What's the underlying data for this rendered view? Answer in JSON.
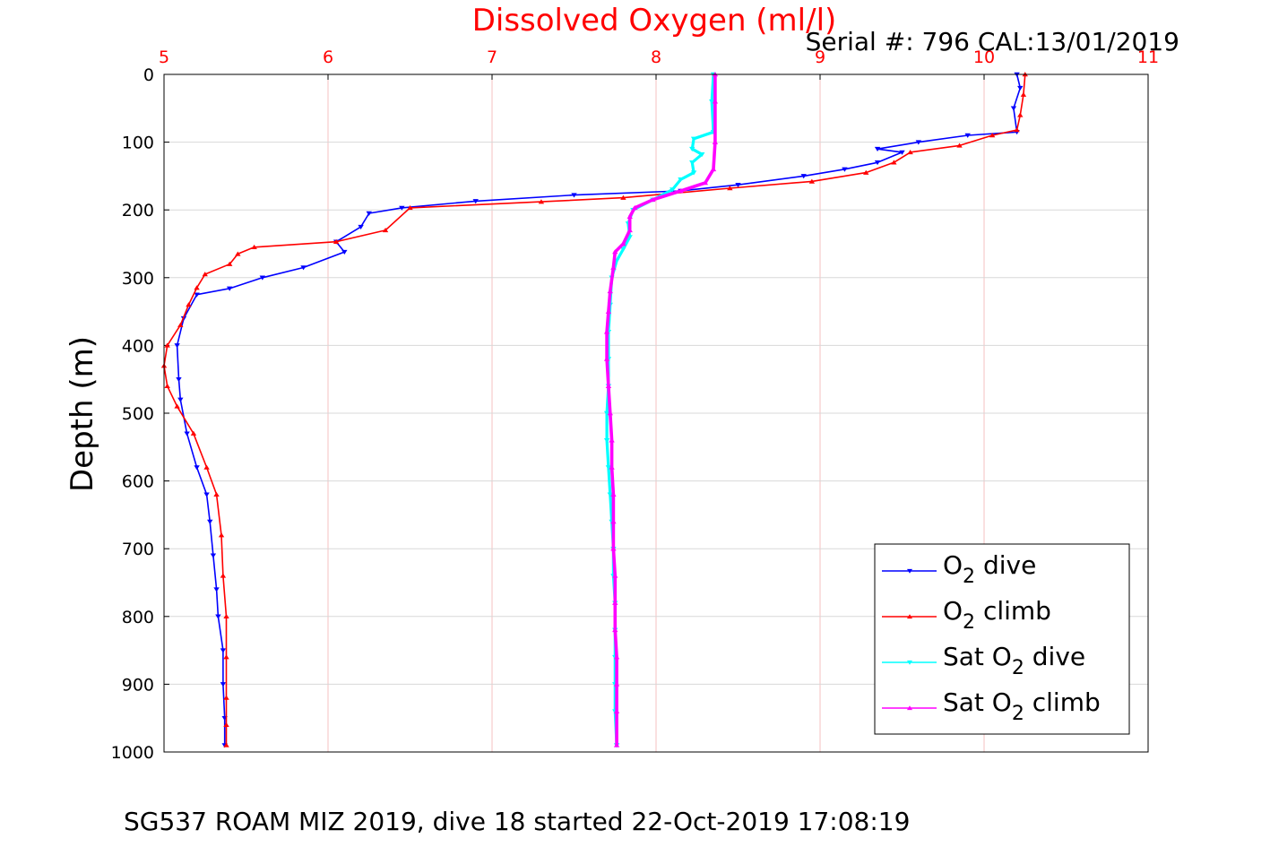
{
  "chart_data": {
    "type": "line",
    "title": "Dissolved Oxygen (ml/l)",
    "serial_text": "Serial #: 796  CAL:13/01/2019",
    "footer": "SG537 ROAM MIZ 2019, dive 18 started 22-Oct-2019 17:08:19",
    "ylabel": "Depth (m)",
    "xlim": [
      5,
      11
    ],
    "ylim": [
      0,
      1000
    ],
    "y_reversed": true,
    "x_axis_position": "top",
    "x_ticks": [
      "5",
      "6",
      "7",
      "8",
      "9",
      "10",
      "11"
    ],
    "y_ticks": [
      "0",
      "100",
      "200",
      "300",
      "400",
      "500",
      "600",
      "700",
      "800",
      "900",
      "1000"
    ],
    "grid": true,
    "legend_position": "bottom-right",
    "colors": {
      "title": "#ff0000",
      "x_ticks": "#ff0000",
      "grid": "#f4c0c0",
      "axis": "#000000"
    },
    "series": [
      {
        "name": "O2 dive",
        "legend_main": "O",
        "legend_sub": "2",
        "legend_rest": " dive",
        "color": "#0000ff",
        "marker": "triangle-down",
        "points": [
          [
            10.2,
            0
          ],
          [
            10.22,
            20
          ],
          [
            10.18,
            50
          ],
          [
            10.2,
            85
          ],
          [
            9.9,
            90
          ],
          [
            9.6,
            100
          ],
          [
            9.35,
            110
          ],
          [
            9.5,
            115
          ],
          [
            9.35,
            130
          ],
          [
            9.15,
            140
          ],
          [
            8.9,
            150
          ],
          [
            8.5,
            163
          ],
          [
            8.15,
            172
          ],
          [
            7.5,
            178
          ],
          [
            6.9,
            187
          ],
          [
            6.45,
            197
          ],
          [
            6.25,
            205
          ],
          [
            6.2,
            225
          ],
          [
            6.05,
            247
          ],
          [
            6.1,
            262
          ],
          [
            5.85,
            285
          ],
          [
            5.6,
            300
          ],
          [
            5.4,
            316
          ],
          [
            5.2,
            325
          ],
          [
            5.12,
            360
          ],
          [
            5.08,
            400
          ],
          [
            5.09,
            450
          ],
          [
            5.1,
            480
          ],
          [
            5.14,
            530
          ],
          [
            5.2,
            580
          ],
          [
            5.26,
            620
          ],
          [
            5.28,
            660
          ],
          [
            5.3,
            710
          ],
          [
            5.32,
            760
          ],
          [
            5.33,
            800
          ],
          [
            5.36,
            850
          ],
          [
            5.36,
            900
          ],
          [
            5.37,
            950
          ],
          [
            5.37,
            990
          ]
        ]
      },
      {
        "name": "O2 climb",
        "legend_main": "O",
        "legend_sub": "2",
        "legend_rest": " climb",
        "color": "#ff0000",
        "marker": "triangle-up",
        "points": [
          [
            10.25,
            0
          ],
          [
            10.24,
            30
          ],
          [
            10.22,
            60
          ],
          [
            10.2,
            82
          ],
          [
            10.05,
            90
          ],
          [
            9.85,
            105
          ],
          [
            9.55,
            115
          ],
          [
            9.45,
            130
          ],
          [
            9.28,
            145
          ],
          [
            8.95,
            158
          ],
          [
            8.45,
            168
          ],
          [
            7.8,
            182
          ],
          [
            7.3,
            188
          ],
          [
            6.5,
            197
          ],
          [
            6.35,
            230
          ],
          [
            6.05,
            247
          ],
          [
            5.55,
            255
          ],
          [
            5.45,
            265
          ],
          [
            5.4,
            280
          ],
          [
            5.25,
            295
          ],
          [
            5.2,
            315
          ],
          [
            5.15,
            340
          ],
          [
            5.1,
            370
          ],
          [
            5.02,
            400
          ],
          [
            5.0,
            430
          ],
          [
            5.02,
            460
          ],
          [
            5.08,
            490
          ],
          [
            5.18,
            530
          ],
          [
            5.26,
            580
          ],
          [
            5.32,
            620
          ],
          [
            5.35,
            680
          ],
          [
            5.36,
            740
          ],
          [
            5.38,
            800
          ],
          [
            5.38,
            860
          ],
          [
            5.38,
            920
          ],
          [
            5.38,
            960
          ],
          [
            5.38,
            990
          ]
        ]
      },
      {
        "name": "Sat O2 dive",
        "legend_main": "Sat O",
        "legend_sub": "2",
        "legend_rest": " dive",
        "color": "#00ffff",
        "marker": "triangle-down",
        "points": [
          [
            8.35,
            0
          ],
          [
            8.34,
            40
          ],
          [
            8.35,
            85
          ],
          [
            8.23,
            95
          ],
          [
            8.22,
            110
          ],
          [
            8.28,
            118
          ],
          [
            8.22,
            130
          ],
          [
            8.23,
            145
          ],
          [
            8.15,
            155
          ],
          [
            8.1,
            170
          ],
          [
            7.98,
            185
          ],
          [
            7.86,
            200
          ],
          [
            7.83,
            220
          ],
          [
            7.84,
            240
          ],
          [
            7.8,
            258
          ],
          [
            7.76,
            275
          ],
          [
            7.73,
            300
          ],
          [
            7.72,
            340
          ],
          [
            7.71,
            380
          ],
          [
            7.71,
            420
          ],
          [
            7.71,
            460
          ],
          [
            7.7,
            500
          ],
          [
            7.7,
            540
          ],
          [
            7.71,
            580
          ],
          [
            7.72,
            620
          ],
          [
            7.73,
            660
          ],
          [
            7.74,
            700
          ],
          [
            7.74,
            740
          ],
          [
            7.75,
            780
          ],
          [
            7.75,
            820
          ],
          [
            7.75,
            860
          ],
          [
            7.75,
            900
          ],
          [
            7.75,
            940
          ],
          [
            7.76,
            990
          ]
        ]
      },
      {
        "name": "Sat O2 climb",
        "legend_main": "Sat O",
        "legend_sub": "2",
        "legend_rest": " climb",
        "color": "#ff00ff",
        "marker": "triangle-up",
        "points": [
          [
            8.36,
            0
          ],
          [
            8.36,
            40
          ],
          [
            8.36,
            100
          ],
          [
            8.35,
            140
          ],
          [
            8.3,
            160
          ],
          [
            8.15,
            172
          ],
          [
            7.98,
            185
          ],
          [
            7.87,
            197
          ],
          [
            7.84,
            210
          ],
          [
            7.84,
            230
          ],
          [
            7.8,
            250
          ],
          [
            7.75,
            262
          ],
          [
            7.74,
            285
          ],
          [
            7.72,
            320
          ],
          [
            7.71,
            350
          ],
          [
            7.7,
            380
          ],
          [
            7.7,
            420
          ],
          [
            7.71,
            460
          ],
          [
            7.72,
            500
          ],
          [
            7.73,
            540
          ],
          [
            7.73,
            580
          ],
          [
            7.74,
            620
          ],
          [
            7.74,
            660
          ],
          [
            7.74,
            700
          ],
          [
            7.75,
            740
          ],
          [
            7.75,
            780
          ],
          [
            7.75,
            820
          ],
          [
            7.76,
            860
          ],
          [
            7.76,
            900
          ],
          [
            7.76,
            940
          ],
          [
            7.76,
            990
          ]
        ]
      }
    ]
  }
}
